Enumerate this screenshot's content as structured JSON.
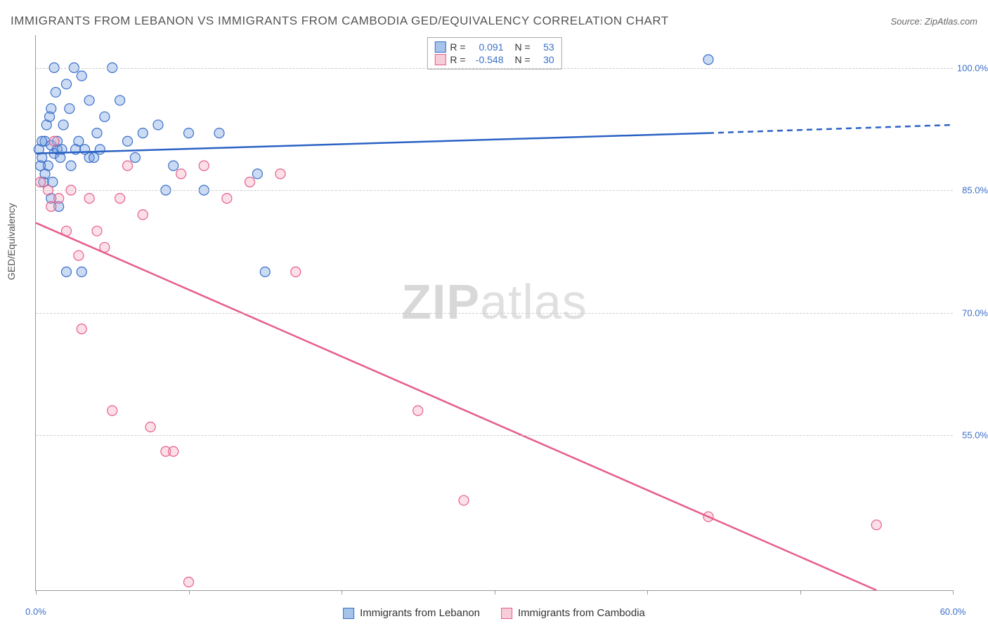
{
  "title": "IMMIGRANTS FROM LEBANON VS IMMIGRANTS FROM CAMBODIA GED/EQUIVALENCY CORRELATION CHART",
  "source": "Source: ZipAtlas.com",
  "watermark": {
    "bold": "ZIP",
    "light": "atlas"
  },
  "chart": {
    "type": "scatter",
    "background_color": "#ffffff",
    "grid_color": "#cccccc",
    "axis_color": "#999999",
    "tick_label_color": "#3b6fc9",
    "axis_title_color": "#555555",
    "ylabel": "GED/Equivalency",
    "xlim": [
      0,
      60
    ],
    "ylim": [
      36,
      104
    ],
    "xticks": [
      0,
      10,
      20,
      30,
      40,
      50,
      60
    ],
    "xtick_labels": [
      "0.0%",
      "",
      "",
      "",
      "",
      "",
      "60.0%"
    ],
    "yticks": [
      55,
      70,
      85,
      100
    ],
    "ytick_labels": [
      "55.0%",
      "70.0%",
      "85.0%",
      "100.0%"
    ],
    "marker_radius": 7,
    "marker_fill_opacity": 0.35,
    "marker_stroke_width": 1.2,
    "line_width": 2.5,
    "series": [
      {
        "name": "Immigrants from Lebanon",
        "color": "#6699dd",
        "stroke": "#3b6fc9",
        "line_color": "#2b62c4",
        "R": "0.091",
        "N": "53",
        "regression": {
          "x1": 0,
          "y1": 89.5,
          "x2": 44,
          "y2": 92,
          "x_dash_to": 60,
          "y_dash_to": 93
        },
        "points": [
          [
            0.2,
            90
          ],
          [
            0.4,
            89
          ],
          [
            0.6,
            91
          ],
          [
            0.8,
            88
          ],
          [
            1.0,
            90.5
          ],
          [
            1.2,
            89.5
          ],
          [
            1.4,
            90
          ],
          [
            1.6,
            89
          ],
          [
            1.0,
            95
          ],
          [
            1.3,
            97
          ],
          [
            2.0,
            98
          ],
          [
            2.5,
            100
          ],
          [
            3.0,
            99
          ],
          [
            1.8,
            93
          ],
          [
            2.2,
            95
          ],
          [
            3.5,
            96
          ],
          [
            4.0,
            92
          ],
          [
            4.5,
            94
          ],
          [
            5.0,
            100
          ],
          [
            5.5,
            96
          ],
          [
            6.0,
            91
          ],
          [
            7.0,
            92
          ],
          [
            8.0,
            93
          ],
          [
            9.0,
            88
          ],
          [
            10.0,
            92
          ],
          [
            11.0,
            85
          ],
          [
            12.0,
            92
          ],
          [
            0.5,
            86
          ],
          [
            1.0,
            84
          ],
          [
            1.5,
            83
          ],
          [
            2.0,
            75
          ],
          [
            3.0,
            75
          ],
          [
            3.5,
            89
          ],
          [
            1.2,
            100
          ],
          [
            0.7,
            93
          ],
          [
            0.9,
            94
          ],
          [
            1.4,
            91
          ],
          [
            2.8,
            91
          ],
          [
            4.2,
            90
          ],
          [
            6.5,
            89
          ],
          [
            8.5,
            85
          ],
          [
            0.3,
            88
          ],
          [
            0.6,
            87
          ],
          [
            1.1,
            86
          ],
          [
            2.3,
            88
          ],
          [
            3.8,
            89
          ],
          [
            14.5,
            87
          ],
          [
            15.0,
            75
          ],
          [
            1.7,
            90
          ],
          [
            2.6,
            90
          ],
          [
            3.2,
            90
          ],
          [
            44.0,
            101
          ],
          [
            0.4,
            91
          ]
        ]
      },
      {
        "name": "Immigrants from Cambodia",
        "color": "#f4a6bd",
        "stroke": "#e75d8a",
        "line_color": "#e75d8a",
        "R": "-0.548",
        "N": "30",
        "regression": {
          "x1": 0,
          "y1": 81,
          "x2": 55,
          "y2": 36,
          "x_dash_to": 55,
          "y_dash_to": 36
        },
        "points": [
          [
            0.3,
            86
          ],
          [
            0.8,
            85
          ],
          [
            1.0,
            83
          ],
          [
            1.2,
            91
          ],
          [
            1.5,
            84
          ],
          [
            2.0,
            80
          ],
          [
            2.3,
            85
          ],
          [
            2.8,
            77
          ],
          [
            3.0,
            68
          ],
          [
            3.5,
            84
          ],
          [
            4.0,
            80
          ],
          [
            4.5,
            78
          ],
          [
            5.0,
            58
          ],
          [
            5.5,
            84
          ],
          [
            6.0,
            88
          ],
          [
            7.0,
            82
          ],
          [
            7.5,
            56
          ],
          [
            8.5,
            53
          ],
          [
            9.0,
            53
          ],
          [
            9.5,
            87
          ],
          [
            10.0,
            37
          ],
          [
            11.0,
            88
          ],
          [
            12.5,
            84
          ],
          [
            14.0,
            86
          ],
          [
            16.0,
            87
          ],
          [
            17.0,
            75
          ],
          [
            25.0,
            58
          ],
          [
            28.0,
            47
          ],
          [
            44.0,
            45
          ],
          [
            55.0,
            44
          ]
        ]
      }
    ],
    "stats_box": {
      "rows": [
        {
          "swatch_fill": "#a6c4ea",
          "swatch_stroke": "#3b6fc9",
          "r_label": "R =",
          "r_val": "0.091",
          "n_label": "N =",
          "n_val": "53"
        },
        {
          "swatch_fill": "#f7cdd9",
          "swatch_stroke": "#e75d8a",
          "r_label": "R =",
          "r_val": "-0.548",
          "n_label": "N =",
          "n_val": "30"
        }
      ]
    },
    "bottom_legend": [
      {
        "swatch_fill": "#a6c4ea",
        "swatch_stroke": "#3b6fc9",
        "label": "Immigrants from Lebanon"
      },
      {
        "swatch_fill": "#f7cdd9",
        "swatch_stroke": "#e75d8a",
        "label": "Immigrants from Cambodia"
      }
    ]
  }
}
